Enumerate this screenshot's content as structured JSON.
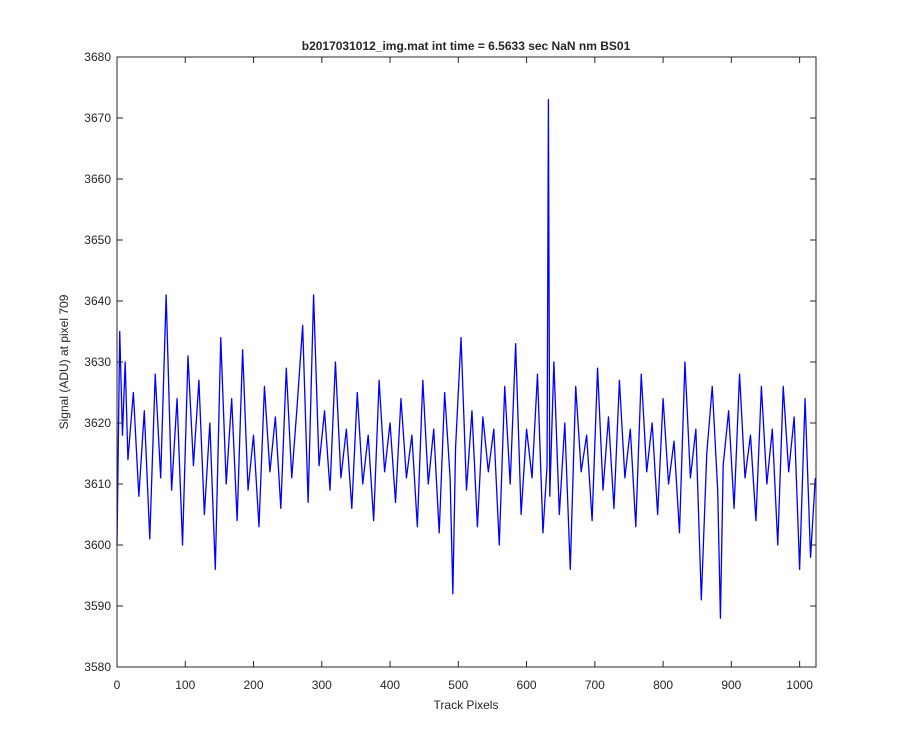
{
  "chart_data": {
    "type": "line",
    "title": "b2017031012_img.mat int time = 6.5633 sec  NaN nm BS01",
    "x_label": "Track Pixels",
    "y_label": "Signal (ADU) at pixel 709",
    "x": [
      0,
      4,
      8,
      12,
      16,
      24,
      32,
      40,
      48,
      56,
      64,
      72,
      80,
      88,
      96,
      104,
      112,
      120,
      128,
      136,
      144,
      152,
      160,
      168,
      176,
      184,
      192,
      200,
      208,
      216,
      224,
      232,
      240,
      248,
      256,
      264,
      272,
      280,
      288,
      296,
      304,
      312,
      320,
      328,
      336,
      344,
      352,
      360,
      368,
      376,
      384,
      392,
      400,
      408,
      416,
      424,
      432,
      440,
      448,
      456,
      464,
      472,
      480,
      488,
      492,
      496,
      504,
      512,
      520,
      528,
      536,
      544,
      552,
      560,
      568,
      576,
      584,
      592,
      600,
      608,
      616,
      624,
      630,
      632,
      634,
      640,
      648,
      656,
      664,
      672,
      680,
      688,
      696,
      704,
      712,
      720,
      728,
      736,
      744,
      752,
      760,
      768,
      776,
      784,
      792,
      800,
      808,
      816,
      824,
      832,
      840,
      848,
      856,
      864,
      872,
      880,
      884,
      888,
      896,
      904,
      912,
      920,
      928,
      936,
      944,
      952,
      960,
      968,
      976,
      984,
      992,
      1000,
      1008,
      1016,
      1023
    ],
    "series": [
      {
        "color": "#0000ff",
        "values": [
          3600,
          3635,
          3618,
          3630,
          3614,
          3625,
          3608,
          3622,
          3601,
          3628,
          3611,
          3641,
          3609,
          3624,
          3600,
          3631,
          3613,
          3627,
          3605,
          3620,
          3596,
          3634,
          3610,
          3624,
          3604,
          3632,
          3609,
          3618,
          3603,
          3626,
          3612,
          3621,
          3606,
          3629,
          3611,
          3623,
          3636,
          3607,
          3641,
          3613,
          3622,
          3609,
          3630,
          3611,
          3619,
          3606,
          3625,
          3610,
          3618,
          3604,
          3627,
          3612,
          3620,
          3607,
          3624,
          3611,
          3618,
          3603,
          3627,
          3610,
          3619,
          3602,
          3625,
          3611,
          3592,
          3616,
          3634,
          3609,
          3622,
          3603,
          3621,
          3612,
          3619,
          3600,
          3626,
          3610,
          3633,
          3605,
          3619,
          3611,
          3628,
          3602,
          3613,
          3673,
          3608,
          3630,
          3605,
          3620,
          3596,
          3626,
          3612,
          3618,
          3604,
          3629,
          3609,
          3621,
          3606,
          3627,
          3611,
          3619,
          3603,
          3628,
          3612,
          3620,
          3605,
          3624,
          3610,
          3617,
          3602,
          3630,
          3611,
          3619,
          3591,
          3615,
          3626,
          3609,
          3588,
          3613,
          3622,
          3606,
          3628,
          3611,
          3618,
          3604,
          3626,
          3610,
          3619,
          3600,
          3626,
          3612,
          3621,
          3596,
          3624,
          3598,
          3611
        ]
      }
    ],
    "xlim": [
      0,
      1024
    ],
    "ylim": [
      3580,
      3680
    ],
    "xticks": [
      0,
      100,
      200,
      300,
      400,
      500,
      600,
      700,
      800,
      900,
      1000
    ],
    "yticks": [
      3580,
      3590,
      3600,
      3610,
      3620,
      3630,
      3640,
      3650,
      3660,
      3670,
      3680
    ]
  }
}
